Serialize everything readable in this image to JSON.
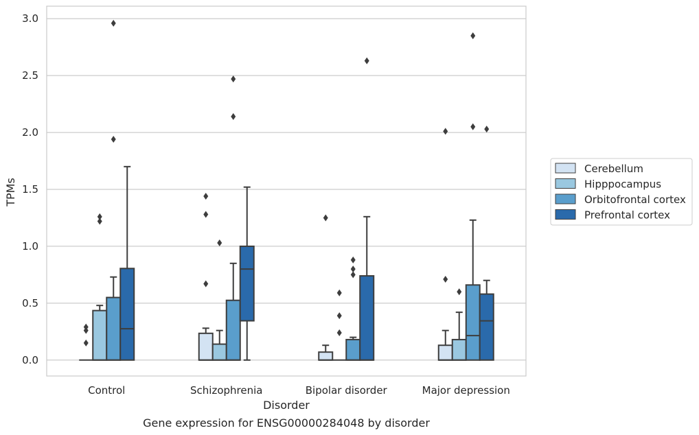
{
  "chart_data": {
    "type": "box",
    "caption": "Gene expression for ENSG00000284048 by disorder",
    "xlabel": "Disorder",
    "ylabel": "TPMs",
    "ylim": [
      -0.14,
      3.11
    ],
    "yticks": [
      "0.0",
      "0.5",
      "1.0",
      "1.5",
      "2.0",
      "2.5",
      "3.0"
    ],
    "grid": "horizontal",
    "legend_position": "right",
    "categories": [
      "Control",
      "Schizophrenia",
      "Bipolar disorder",
      "Major depression"
    ],
    "series": [
      {
        "name": "Cerebellum",
        "color": "#d3e3f3",
        "boxes": [
          {
            "q1": 0,
            "median": 0,
            "q3": 0,
            "whisker_low": 0,
            "whisker_high": 0,
            "outliers": [
              0.15,
              0.26,
              0.29
            ]
          },
          {
            "q1": 0,
            "median": 0,
            "q3": 0.235,
            "whisker_low": 0,
            "whisker_high": 0.28,
            "outliers": [
              0.67,
              1.28,
              1.44
            ]
          },
          {
            "q1": 0,
            "median": 0,
            "q3": 0.07,
            "whisker_low": 0,
            "whisker_high": 0.13,
            "outliers": [
              1.25
            ]
          },
          {
            "q1": 0,
            "median": 0,
            "q3": 0.13,
            "whisker_low": 0,
            "whisker_high": 0.26,
            "outliers": [
              0.71,
              2.01
            ]
          }
        ]
      },
      {
        "name": "Hipppocampus",
        "color": "#9ac8e0",
        "boxes": [
          {
            "q1": 0,
            "median": 0,
            "q3": 0.435,
            "whisker_low": 0,
            "whisker_high": 0.48,
            "outliers": [
              1.22,
              1.26
            ]
          },
          {
            "q1": 0,
            "median": 0,
            "q3": 0.14,
            "whisker_low": 0,
            "whisker_high": 0.26,
            "outliers": [
              1.03
            ]
          },
          {
            "q1": 0,
            "median": 0,
            "q3": 0,
            "whisker_low": 0,
            "whisker_high": 0,
            "outliers": [
              0.24,
              0.39,
              0.59
            ]
          },
          {
            "q1": 0,
            "median": 0,
            "q3": 0.18,
            "whisker_low": 0,
            "whisker_high": 0.42,
            "outliers": [
              0.6
            ]
          }
        ]
      },
      {
        "name": "Orbitofrontal cortex",
        "color": "#5a9ecc",
        "boxes": [
          {
            "q1": 0,
            "median": 0,
            "q3": 0.55,
            "whisker_low": 0,
            "whisker_high": 0.73,
            "outliers": [
              1.94,
              2.96
            ]
          },
          {
            "q1": 0,
            "median": 0,
            "q3": 0.525,
            "whisker_low": 0,
            "whisker_high": 0.85,
            "outliers": [
              2.14,
              2.47
            ]
          },
          {
            "q1": 0,
            "median": 0,
            "q3": 0.18,
            "whisker_low": 0,
            "whisker_high": 0.2,
            "outliers": [
              0.75,
              0.8,
              0.88
            ]
          },
          {
            "q1": 0,
            "median": 0.215,
            "q3": 0.66,
            "whisker_low": 0,
            "whisker_high": 1.23,
            "outliers": [
              2.05,
              2.85
            ]
          }
        ]
      },
      {
        "name": "Prefrontal cortex",
        "color": "#2a6aab",
        "boxes": [
          {
            "q1": 0,
            "median": 0.275,
            "q3": 0.805,
            "whisker_low": 0,
            "whisker_high": 1.7,
            "outliers": []
          },
          {
            "q1": 0.345,
            "median": 0.8,
            "q3": 1.0,
            "whisker_low": 0,
            "whisker_high": 1.52,
            "outliers": []
          },
          {
            "q1": 0,
            "median": 0,
            "q3": 0.74,
            "whisker_low": 0,
            "whisker_high": 1.26,
            "outliers": [
              2.63
            ]
          },
          {
            "q1": 0,
            "median": 0.345,
            "q3": 0.58,
            "whisker_low": 0,
            "whisker_high": 0.7,
            "outliers": [
              2.03
            ]
          }
        ]
      }
    ]
  }
}
